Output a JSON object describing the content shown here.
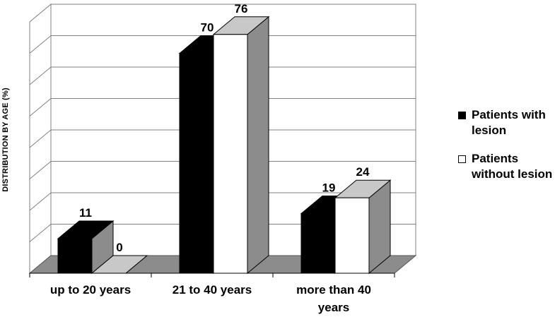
{
  "chart_data": {
    "type": "bar",
    "categories": [
      "up to 20 years",
      "21 to 40 years",
      "more than 40 years"
    ],
    "series": [
      {
        "name": "Patients with lesion",
        "values": [
          11,
          70,
          19
        ],
        "color": "#000000"
      },
      {
        "name": "Patients without lesion",
        "values": [
          0,
          76,
          24
        ],
        "color": "#ffffff"
      }
    ],
    "ylabel": "DISTRIBUTION BY AGE (%)",
    "ylim": [
      0,
      80
    ],
    "grid": true,
    "legend_position": "right",
    "style": "3d-clustered-columns",
    "colors": {
      "side_face": "#8c8c8c",
      "top_face": "#c8c8c8",
      "floor": "#8c8c8c",
      "grid": "#808080"
    }
  }
}
